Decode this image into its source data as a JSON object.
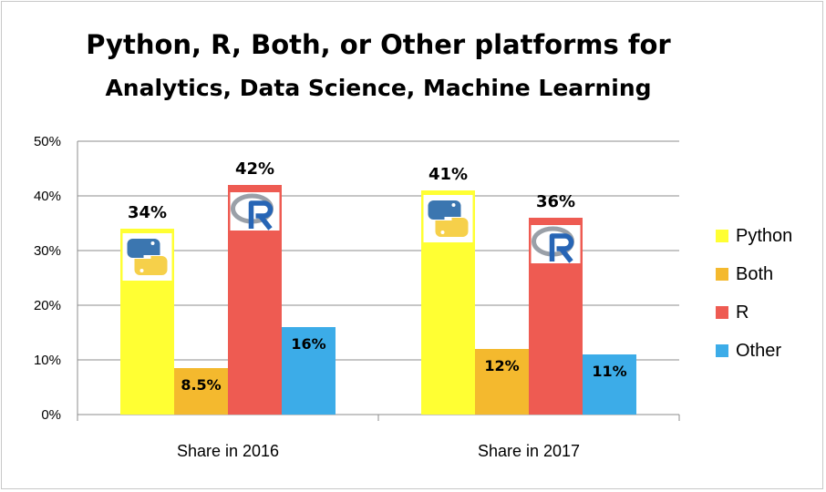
{
  "chart_data": {
    "type": "bar",
    "title": "Python, R, Both, or Other platforms for",
    "subtitle": "Analytics, Data Science, Machine Learning",
    "categories": [
      "Share in 2016",
      "Share in 2017"
    ],
    "series": [
      {
        "name": "Python",
        "values": [
          34,
          41
        ],
        "labels": [
          "34%",
          "41%"
        ],
        "color": "#ffff33",
        "logo": "python-logo"
      },
      {
        "name": "Both",
        "values": [
          8.5,
          12
        ],
        "labels": [
          "8.5%",
          "12%"
        ],
        "color": "#f4b92e"
      },
      {
        "name": "R",
        "values": [
          42,
          36
        ],
        "labels": [
          "42%",
          "36%"
        ],
        "color": "#ee5b52",
        "logo": "r-logo"
      },
      {
        "name": "Other",
        "values": [
          16,
          11
        ],
        "labels": [
          "16%",
          "11%"
        ],
        "color": "#3cace8"
      }
    ],
    "ylim": [
      0,
      50
    ],
    "y_ticks": [
      "0%",
      "10%",
      "20%",
      "30%",
      "40%",
      "50%"
    ],
    "xlabel": "",
    "ylabel": "",
    "grid": true,
    "legend_position": "right"
  }
}
